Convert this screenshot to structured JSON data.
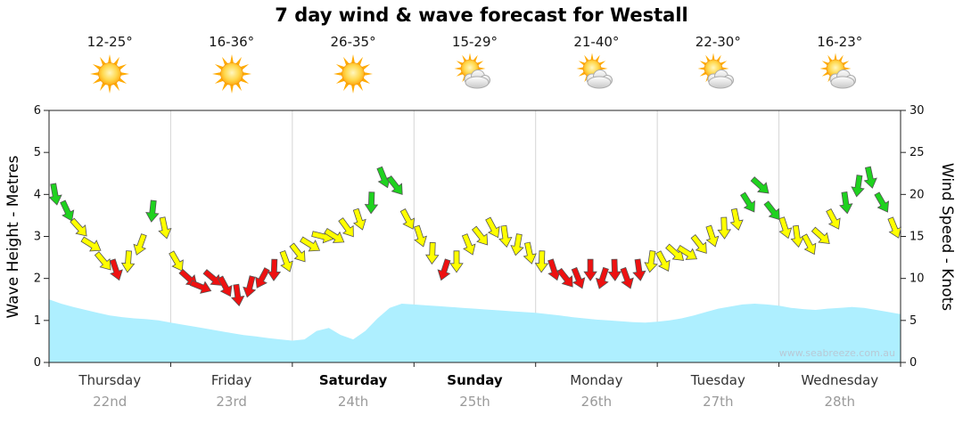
{
  "title": "7 day wind & wave forecast for Westall",
  "watermark": "www.seabreeze.com.au",
  "days": [
    {
      "name": "Thursday",
      "date": "22nd",
      "temp": "12-25°",
      "icon": "sunny",
      "bold": false
    },
    {
      "name": "Friday",
      "date": "23rd",
      "temp": "16-36°",
      "icon": "sunny",
      "bold": false
    },
    {
      "name": "Saturday",
      "date": "24th",
      "temp": "26-35°",
      "icon": "sunny",
      "bold": true
    },
    {
      "name": "Sunday",
      "date": "25th",
      "temp": "15-29°",
      "icon": "partly-cloudy",
      "bold": true
    },
    {
      "name": "Monday",
      "date": "26th",
      "temp": "21-40°",
      "icon": "partly-cloudy",
      "bold": false
    },
    {
      "name": "Tuesday",
      "date": "27th",
      "temp": "22-30°",
      "icon": "partly-cloudy",
      "bold": false
    },
    {
      "name": "Wednesday",
      "date": "28th",
      "temp": "16-23°",
      "icon": "partly-cloudy",
      "bold": false
    }
  ],
  "axes": {
    "left_label": "Wave Height - Metres",
    "right_label": "Wind Speed - Knots",
    "left_ticks": [
      0,
      1,
      2,
      3,
      4,
      5,
      6
    ],
    "right_ticks": [
      0,
      5,
      10,
      15,
      20,
      25,
      30
    ],
    "left_max": 6,
    "right_max": 30
  },
  "chart_data": {
    "type": "line",
    "title": "7 day wind & wave forecast for Westall",
    "x_categories": [
      "Thursday 22nd",
      "Friday 23rd",
      "Saturday 24th",
      "Sunday 25th",
      "Monday 26th",
      "Tuesday 27th",
      "Wednesday 28th"
    ],
    "series": [
      {
        "name": "Wind Speed",
        "unit": "knots",
        "style": "arrows",
        "axis": "right",
        "axis_range": [
          0,
          30
        ],
        "color_bands": {
          "red_below": 12,
          "yellow_below": 18,
          "green_from": 18
        },
        "values": [
          20,
          18,
          16,
          14,
          12,
          11,
          12,
          14,
          18,
          16,
          12,
          10,
          9,
          10,
          9,
          8,
          9,
          10,
          11,
          12,
          13,
          14,
          15,
          15,
          16,
          17,
          19,
          22,
          21,
          17,
          15,
          13,
          11,
          12,
          14,
          15,
          16,
          15,
          14,
          13,
          12,
          11,
          10,
          10,
          11,
          10,
          11,
          10,
          11,
          12,
          12,
          13,
          13,
          14,
          15,
          16,
          17,
          19,
          21,
          18,
          16,
          15,
          14,
          15,
          17,
          19,
          21,
          22,
          19,
          16
        ],
        "rotations_deg": [
          170,
          155,
          138,
          122,
          140,
          162,
          184,
          200,
          186,
          168,
          150,
          132,
          112,
          130,
          152,
          172,
          194,
          208,
          182,
          160,
          142,
          122,
          104,
          122,
          144,
          162,
          182,
          158,
          142,
          152,
          162,
          182,
          198,
          180,
          158,
          142,
          152,
          172,
          190,
          168,
          182,
          162,
          142,
          158,
          180,
          198,
          178,
          160,
          172,
          188,
          152,
          132,
          122,
          142,
          162,
          178,
          168,
          148,
          132,
          142,
          162,
          172,
          152,
          132,
          152,
          172,
          188,
          168,
          150,
          158
        ]
      },
      {
        "name": "Wave Height",
        "unit": "m",
        "style": "area",
        "axis": "left",
        "axis_range": [
          0,
          6
        ],
        "values": [
          1.5,
          1.4,
          1.32,
          1.25,
          1.18,
          1.12,
          1.08,
          1.05,
          1.03,
          1.0,
          0.95,
          0.9,
          0.85,
          0.8,
          0.75,
          0.7,
          0.65,
          0.62,
          0.58,
          0.55,
          0.52,
          0.55,
          0.75,
          0.82,
          0.65,
          0.55,
          0.75,
          1.05,
          1.3,
          1.4,
          1.38,
          1.36,
          1.34,
          1.32,
          1.3,
          1.28,
          1.26,
          1.24,
          1.22,
          1.2,
          1.18,
          1.15,
          1.12,
          1.08,
          1.05,
          1.02,
          1.0,
          0.98,
          0.96,
          0.95,
          0.97,
          1.0,
          1.05,
          1.12,
          1.2,
          1.28,
          1.33,
          1.38,
          1.4,
          1.38,
          1.35,
          1.3,
          1.27,
          1.25,
          1.28,
          1.3,
          1.32,
          1.3,
          1.25,
          1.2,
          1.15
        ]
      }
    ],
    "grid": "vertical-day-lines",
    "legend_position": "none"
  },
  "colors": {
    "arrow_green": "#1fd21f",
    "arrow_yellow": "#ffff00",
    "arrow_red": "#ee1111",
    "arrow_outline": "#555555",
    "wave_fill": "#aeefff",
    "grid_line": "#d6d6d6",
    "axis_line": "#222222",
    "tick_text": "#111111",
    "watermark_text": "#b8c9d6"
  }
}
